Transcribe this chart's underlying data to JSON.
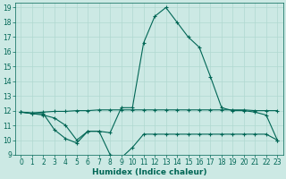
{
  "title": "",
  "xlabel": "Humidex (Indice chaleur)",
  "bg_color": "#cce9e4",
  "grid_color": "#b0d8d0",
  "line_color": "#006655",
  "xlim": [
    -0.5,
    23.5
  ],
  "ylim": [
    9,
    19.3
  ],
  "xticks": [
    0,
    1,
    2,
    3,
    4,
    5,
    6,
    7,
    8,
    9,
    10,
    11,
    12,
    13,
    14,
    15,
    16,
    17,
    18,
    19,
    20,
    21,
    22,
    23
  ],
  "yticks": [
    9,
    10,
    11,
    12,
    13,
    14,
    15,
    16,
    17,
    18,
    19
  ],
  "line1_x": [
    0,
    1,
    2,
    3,
    4,
    5,
    6,
    7,
    8,
    9,
    10,
    11,
    12,
    13,
    14,
    15,
    16,
    17,
    18,
    19,
    20,
    21,
    22,
    23
  ],
  "line1_y": [
    11.9,
    11.8,
    11.7,
    11.5,
    11.0,
    10.0,
    10.6,
    10.6,
    10.5,
    12.2,
    12.2,
    16.6,
    18.4,
    19.0,
    18.0,
    17.0,
    16.3,
    14.3,
    12.2,
    12.0,
    12.0,
    11.9,
    11.7,
    10.0
  ],
  "line2_x": [
    0,
    1,
    2,
    3,
    4,
    5,
    6,
    7,
    8,
    9,
    10,
    11,
    12,
    13,
    14,
    15,
    16,
    17,
    18,
    19,
    20,
    21,
    22,
    23
  ],
  "line2_y": [
    11.9,
    11.85,
    11.9,
    11.95,
    11.95,
    12.0,
    12.0,
    12.05,
    12.05,
    12.05,
    12.05,
    12.05,
    12.05,
    12.05,
    12.05,
    12.05,
    12.05,
    12.05,
    12.05,
    12.05,
    12.05,
    12.0,
    12.0,
    12.0
  ],
  "line3_x": [
    0,
    1,
    2,
    3,
    4,
    5,
    6,
    7,
    8,
    9,
    10,
    11,
    12,
    13,
    14,
    15,
    16,
    17,
    18,
    19,
    20,
    21,
    22,
    23
  ],
  "line3_y": [
    11.9,
    11.8,
    11.8,
    10.7,
    10.1,
    9.8,
    10.6,
    10.6,
    9.0,
    8.8,
    9.5,
    10.4,
    10.4,
    10.4,
    10.4,
    10.4,
    10.4,
    10.4,
    10.4,
    10.4,
    10.4,
    10.4,
    10.4,
    10.0
  ],
  "xlabel_fontsize": 6.5,
  "tick_fontsize": 5.5,
  "marker_size": 3.0,
  "line_width": 0.8
}
